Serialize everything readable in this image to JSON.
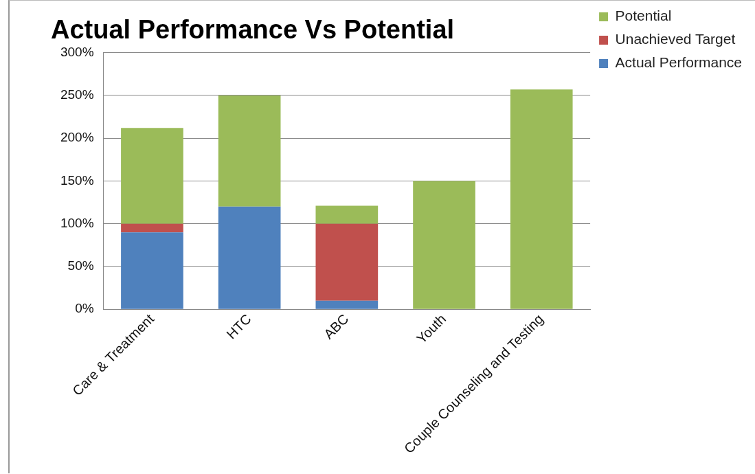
{
  "chart_data": {
    "type": "bar",
    "title": "Actual Performance Vs Potential",
    "categories": [
      "Care & Treatment",
      "HTC",
      "ABC",
      "Youth",
      "Couple Counseling and Testing"
    ],
    "stacked": true,
    "series": [
      {
        "name": "Actual Performance",
        "color": "#4f81bd",
        "values": [
          90,
          120,
          10,
          0,
          0
        ]
      },
      {
        "name": "Unachieved Target",
        "color": "#c0504d",
        "values": [
          10,
          0,
          90,
          0,
          0
        ]
      },
      {
        "name": "Potential",
        "color": "#9bbb59",
        "values": [
          112,
          130,
          21,
          150,
          257
        ]
      }
    ],
    "ylim": [
      0,
      300
    ],
    "yticks": [
      {
        "value": 0,
        "label": "0%"
      },
      {
        "value": 50,
        "label": "50%"
      },
      {
        "value": 100,
        "label": "100%"
      },
      {
        "value": 150,
        "label": "150%"
      },
      {
        "value": 200,
        "label": "200%"
      },
      {
        "value": 250,
        "label": "250%"
      },
      {
        "value": 300,
        "label": "300%"
      }
    ],
    "grid": "y",
    "legend": "right"
  }
}
